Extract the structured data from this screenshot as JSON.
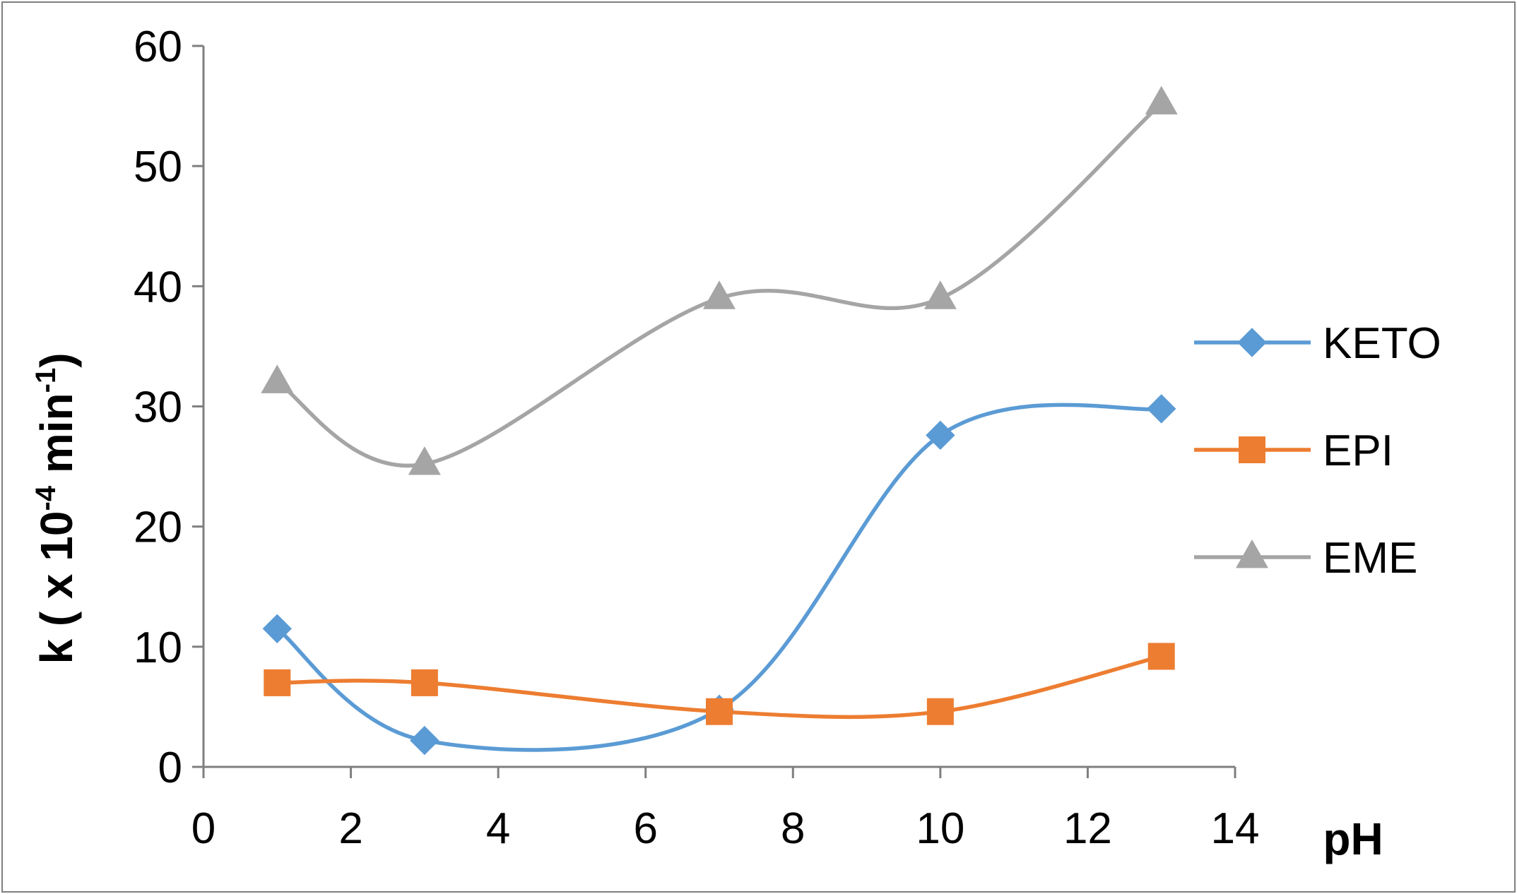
{
  "chart_data": {
    "type": "scatter",
    "title": "",
    "xlabel": "pH",
    "ylabel": {
      "prefix": "k ( x 10",
      "exp1": "-4",
      "middle": " min",
      "exp2": "-1",
      "suffix": ")"
    },
    "xlim": [
      0,
      14
    ],
    "ylim": [
      0,
      60
    ],
    "xticks": [
      "0",
      "2",
      "4",
      "6",
      "8",
      "10",
      "12",
      "14"
    ],
    "yticks": [
      "0",
      "10",
      "20",
      "30",
      "40",
      "50",
      "60"
    ],
    "smooth": true,
    "legend_position": "right",
    "series": [
      {
        "name": "KETO",
        "color": "#5b9bd5",
        "marker": "diamond",
        "x": [
          1,
          3,
          7,
          10,
          13
        ],
        "y": [
          11.5,
          2.2,
          4.8,
          27.6,
          29.8
        ]
      },
      {
        "name": "EPI",
        "color": "#ed7d31",
        "marker": "square",
        "x": [
          1,
          3,
          7,
          10,
          13
        ],
        "y": [
          7.0,
          7.0,
          4.6,
          4.6,
          9.2
        ]
      },
      {
        "name": "EME",
        "color": "#a5a5a5",
        "marker": "triangle",
        "x": [
          1,
          3,
          7,
          10,
          13
        ],
        "y": [
          32.0,
          25.2,
          39.0,
          39.0,
          55.2
        ]
      }
    ]
  }
}
